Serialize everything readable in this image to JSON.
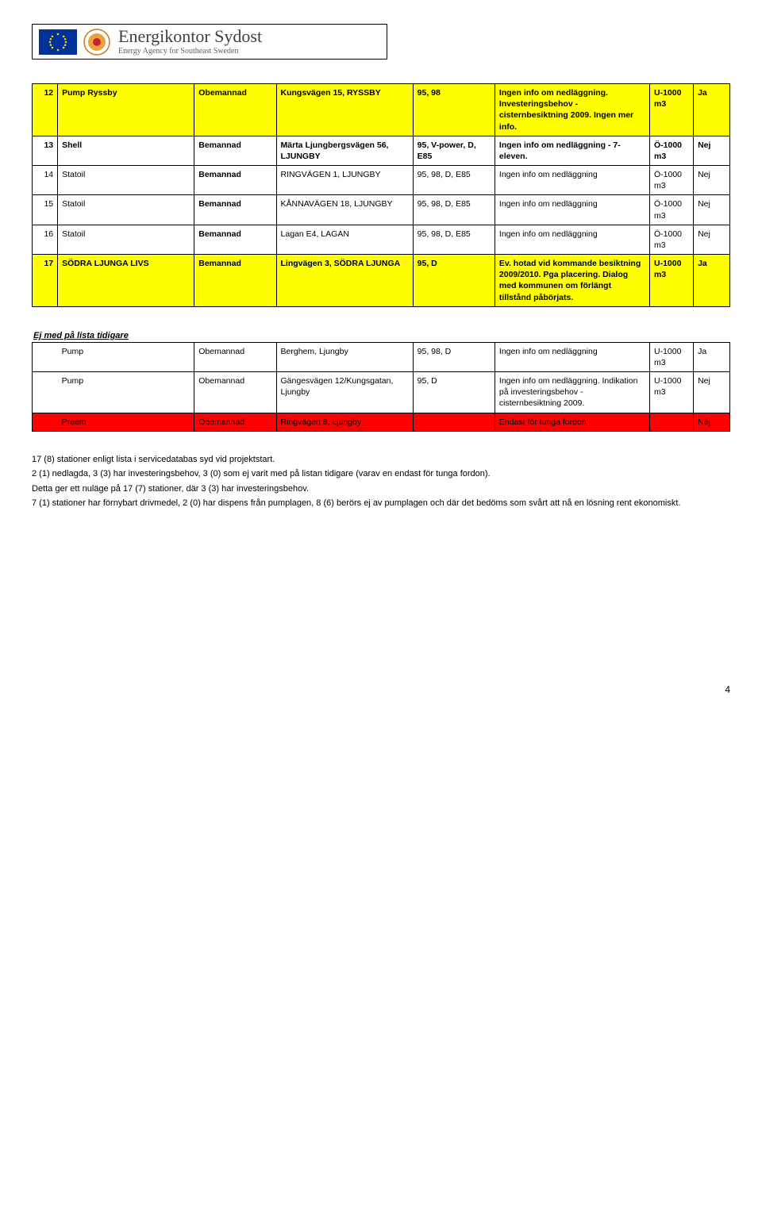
{
  "colors": {
    "yellow": "#ffff00",
    "red": "#ff0000",
    "white": "#ffffff",
    "orange": "#e8a33d",
    "darkOrange": "#c97a20"
  },
  "logo": {
    "title": "Energikontor Sydost",
    "subtitle": "Energy Agency for Southeast Sweden"
  },
  "table1": [
    {
      "n": "12",
      "brand": "Pump Ryssby",
      "staff": "Obemannad",
      "addr": "Kungsvägen 15, RYSSBY",
      "fuel": "95, 98",
      "note": "Ingen info om nedläggning. Investeringsbehov - cisternbesiktning 2009. Ingen mer info.",
      "vol": "U-1000 m3",
      "yn": "Ja",
      "bg": "yellow",
      "bold": true
    },
    {
      "n": "13",
      "brand": "Shell",
      "staff": "Bemannad",
      "addr": "Märta Ljungbergsvägen 56, LJUNGBY",
      "fuel": "95, V-power, D, E85",
      "note": "Ingen info om nedläggning - 7-eleven.",
      "vol": "Ö-1000 m3",
      "yn": "Nej",
      "bg": "white",
      "bold": true
    },
    {
      "n": "14",
      "brand": "Statoil",
      "staff": "Bemannad",
      "addr": "RINGVÄGEN 1, LJUNGBY",
      "fuel": "95, 98, D, E85",
      "note": "Ingen info om nedläggning",
      "vol": "Ö-1000 m3",
      "yn": "Nej",
      "bg": "white",
      "bold": false
    },
    {
      "n": "15",
      "brand": "Statoil",
      "staff": "Bemannad",
      "addr": "KÅNNAVÄGEN 18, LJUNGBY",
      "fuel": "95, 98, D, E85",
      "note": "Ingen info om nedläggning",
      "vol": "Ö-1000 m3",
      "yn": "Nej",
      "bg": "white",
      "bold": false
    },
    {
      "n": "16",
      "brand": "Statoil",
      "staff": "Bemannad",
      "addr": "Lagan E4, LAGAN",
      "fuel": "95, 98, D, E85",
      "note": "Ingen info om nedläggning",
      "vol": "Ö-1000 m3",
      "yn": "Nej",
      "bg": "white",
      "bold": false
    },
    {
      "n": "17",
      "brand": "SÖDRA LJUNGA LIVS",
      "staff": "Bemannad",
      "addr": "Lingvägen 3, SÖDRA LJUNGA",
      "fuel": "95, D",
      "note": "Ev. hotad vid kommande besiktning 2009/2010. Pga placering. Dialog med kommunen om förlängt tillstånd påbörjats.",
      "vol": "U-1000 m3",
      "yn": "Ja",
      "bg": "yellow",
      "bold": true
    }
  ],
  "section2Title": "Ej med på lista tidigare",
  "table2": [
    {
      "brand": "Pump",
      "staff": "Obemannad",
      "addr": "Berghem, Ljungby",
      "fuel": "95, 98, D",
      "note": "Ingen info om nedläggning",
      "vol": "U-1000 m3",
      "yn": "Ja",
      "bg": "white"
    },
    {
      "brand": "Pump",
      "staff": "Obemannad",
      "addr": "Gängesvägen 12/Kungsgatan, Ljungby",
      "fuel": "95, D",
      "note": "Ingen info om nedläggning. Indikation på investeringsbehov - cisternbesiktning 2009.",
      "vol": "U-1000 m3",
      "yn": "Nej",
      "bg": "white"
    },
    {
      "brand": "Preem",
      "staff": "Obemannad",
      "addr": "Ringvägen 8, Ljungby",
      "fuel": "",
      "note": "Endast för tunga fordon",
      "vol": "",
      "yn": "Nej",
      "bg": "red"
    }
  ],
  "paragraphs": [
    "17 (8) stationer enligt lista i servicedatabas syd vid projektstart.",
    "2 (1) nedlagda, 3 (3) har investeringsbehov, 3 (0) som ej varit med på listan tidigare (varav en endast för tunga fordon).",
    "Detta ger ett nuläge på 17 (7) stationer, där 3 (3) har investeringsbehov.",
    "7 (1) stationer har förnybart drivmedel, 2 (0) har dispens från pumplagen, 8 (6) berörs ej av pumplagen och där det bedöms som svårt att nå en lösning rent ekonomiskt."
  ],
  "pageNumber": "4"
}
